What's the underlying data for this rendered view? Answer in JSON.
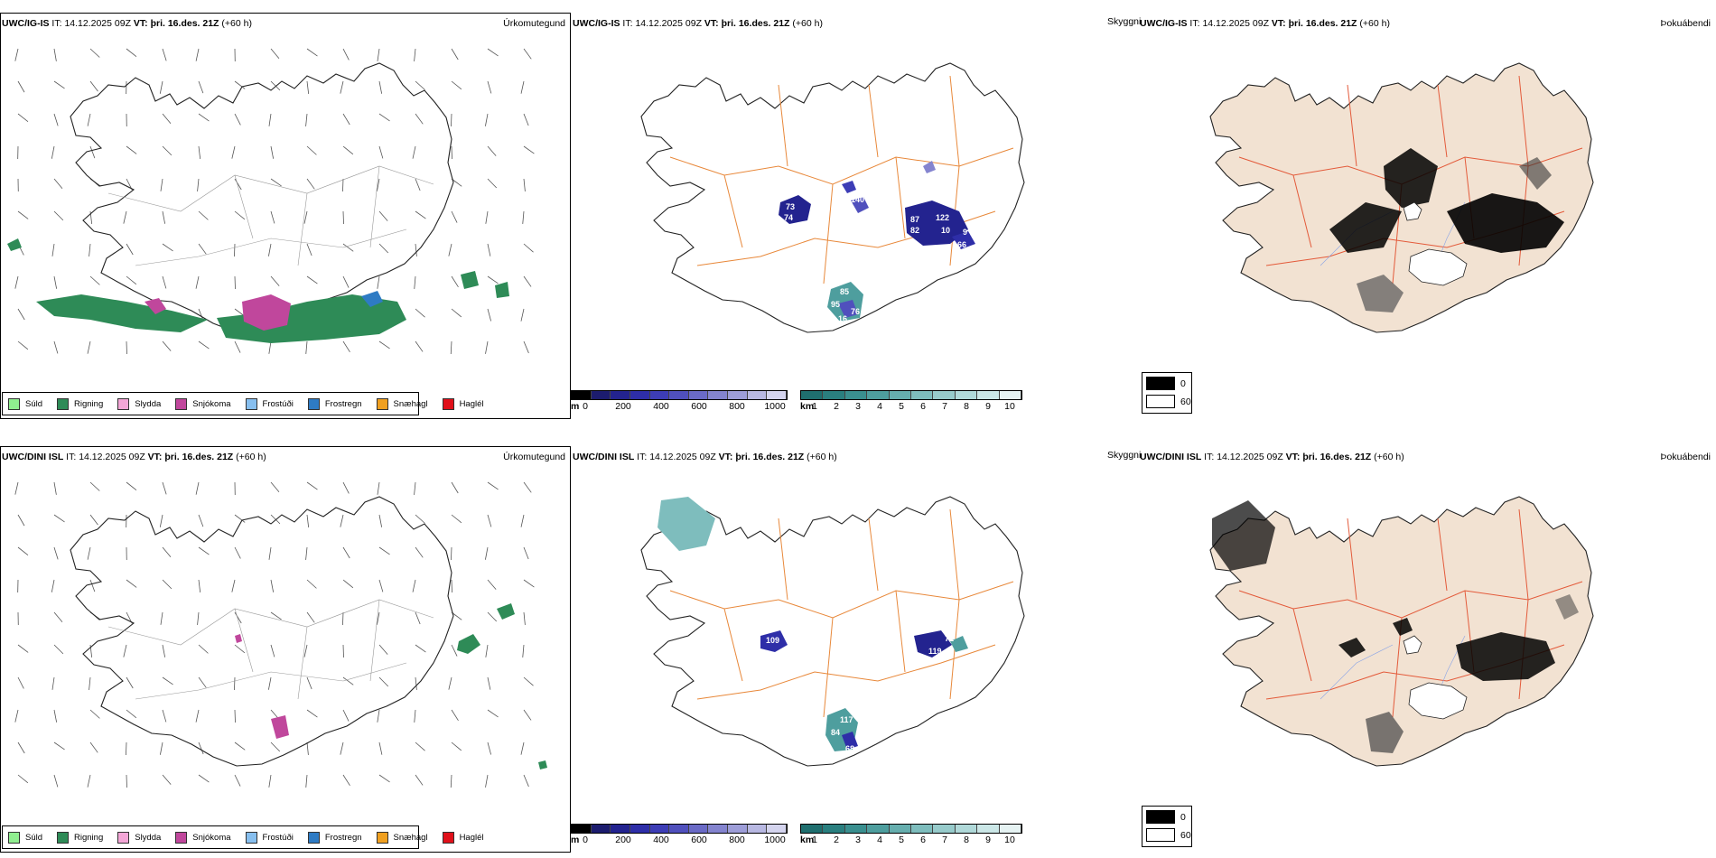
{
  "rows": [
    {
      "id": "ig",
      "model": "UWC/IG-IS",
      "it_label": "IT:",
      "it_value": "14.12.2025 09Z",
      "vt_label": "VT:",
      "vt_value": "þri. 16.des. 21Z",
      "lead": "(+60 h)"
    },
    {
      "id": "dini",
      "model": "UWC/DINI ISL",
      "it_label": "IT:",
      "it_value": "14.12.2025 09Z",
      "vt_label": "VT:",
      "vt_value": "þri. 16.des. 21Z",
      "lead": "(+60 h)"
    }
  ],
  "panel_titles": {
    "precip": "Úrkomutegund",
    "visibility": "Skyggni",
    "cloud": "Þokuábendi"
  },
  "precip_legend": [
    {
      "label": "Súld",
      "color": "#90ee90"
    },
    {
      "label": "Rigning",
      "color": "#2e8b57"
    },
    {
      "label": "Slydda",
      "color": "#f4a6d7"
    },
    {
      "label": "Snjókoma",
      "color": "#c0479c"
    },
    {
      "label": "Frostúði",
      "color": "#87bfef"
    },
    {
      "label": "Frostregn",
      "color": "#2e7bc4"
    },
    {
      "label": "Snæhagl",
      "color": "#f0a020"
    },
    {
      "label": "Haglél",
      "color": "#e0101a"
    }
  ],
  "vis_m_bar": {
    "unit": "m",
    "ticks": [
      "0",
      "200",
      "400",
      "600",
      "800",
      "1000"
    ],
    "colors": [
      "#000000",
      "#1c1c6e",
      "#23238f",
      "#2e2ea8",
      "#3d3db6",
      "#5050bd",
      "#6a6ac6",
      "#8484cf",
      "#9d9dd8",
      "#b8b8e2",
      "#d4d4ee"
    ]
  },
  "vis_km_bar": {
    "unit": "km",
    "ticks": [
      "1",
      "2",
      "3",
      "4",
      "5",
      "6",
      "7",
      "8",
      "9",
      "10"
    ],
    "colors": [
      "#1f6f6f",
      "#2a7f7f",
      "#3a8f8f",
      "#4e9e9e",
      "#66aeae",
      "#7ebdbd",
      "#97cbcb",
      "#b0d9d9",
      "#cbe7e7",
      "#e6f3f3"
    ]
  },
  "cloud_legend": [
    {
      "label": "0",
      "color": "#000000"
    },
    {
      "label": "60",
      "color": "#ffffff"
    }
  ],
  "vis_labels": {
    "ig": [
      "73",
      "74",
      "140",
      "87",
      "82",
      "122",
      "10",
      "9",
      "66",
      "85",
      "95",
      "76",
      "16"
    ],
    "dini": [
      "109",
      "71",
      "119",
      "117",
      "84",
      "68"
    ]
  }
}
